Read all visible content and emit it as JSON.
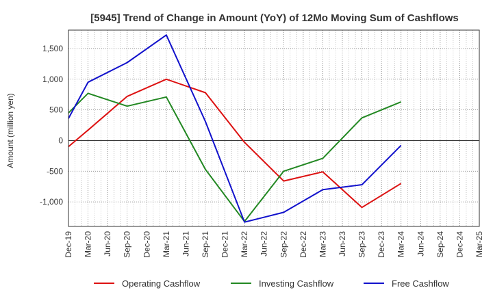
{
  "chart_data": {
    "type": "line",
    "title": "[5945]  Trend of Change in Amount (YoY) of 12Mo Moving Sum of Cashflows",
    "xlabel": "",
    "ylabel": "Amount (million yen)",
    "ylim": [
      -1400,
      1800
    ],
    "yticks": [
      1500,
      1000,
      500,
      0,
      -500,
      -1000
    ],
    "ytick_labels": [
      "1,500",
      "1,000",
      "500",
      "0",
      "-500",
      "-1,000"
    ],
    "grid": true,
    "legend_position": "bottom",
    "categories": [
      "Dec-19",
      "Mar-20",
      "Jun-20",
      "Sep-20",
      "Dec-20",
      "Mar-21",
      "Jun-21",
      "Sep-21",
      "Dec-21",
      "Mar-22",
      "Jun-22",
      "Sep-22",
      "Dec-22",
      "Mar-23",
      "Jun-23",
      "Sep-23",
      "Dec-23",
      "Mar-24",
      "Jun-24",
      "Sep-24",
      "Dec-24",
      "Mar-25"
    ],
    "series": [
      {
        "name": "Operating Cashflow",
        "color": "#dd1111",
        "values": [
          -100,
          170,
          null,
          720,
          null,
          1000,
          null,
          780,
          null,
          -30,
          null,
          -660,
          null,
          -510,
          null,
          -1090,
          null,
          -700,
          null,
          null,
          null,
          null
        ]
      },
      {
        "name": "Investing Cashflow",
        "color": "#228822",
        "values": [
          450,
          770,
          null,
          560,
          null,
          710,
          null,
          -470,
          null,
          -1320,
          null,
          -500,
          null,
          -290,
          null,
          370,
          null,
          630,
          null,
          null,
          null,
          null
        ]
      },
      {
        "name": "Free Cashflow",
        "color": "#1111cc",
        "values": [
          360,
          950,
          null,
          1270,
          null,
          1720,
          null,
          310,
          null,
          -1330,
          null,
          -1170,
          null,
          -800,
          null,
          -720,
          null,
          -80,
          null,
          null,
          null,
          null
        ]
      }
    ]
  }
}
